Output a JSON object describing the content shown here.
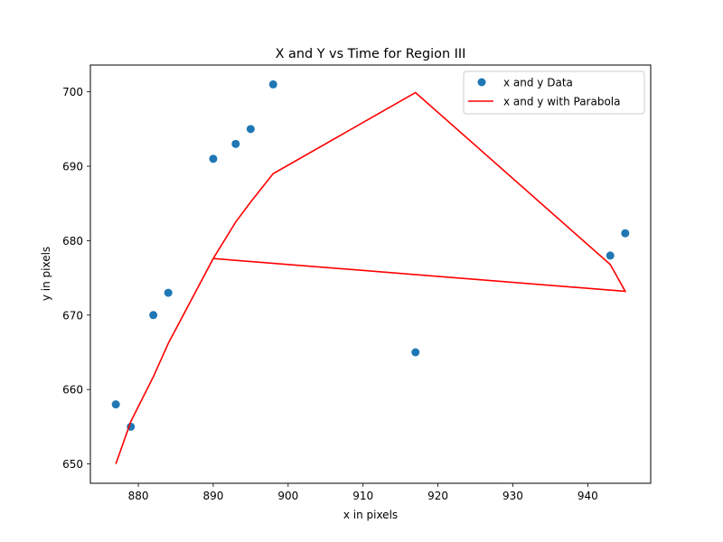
{
  "chart_data": {
    "type": "scatter",
    "title": "X and Y vs Time for Region III",
    "xlabel": "x in pixels",
    "ylabel": "y in pixels",
    "xlim": [
      873.6,
      948.4
    ],
    "ylim": [
      647.4,
      703.6
    ],
    "xticks": [
      880,
      890,
      900,
      910,
      920,
      930,
      940
    ],
    "yticks": [
      650,
      660,
      670,
      680,
      690,
      700
    ],
    "grid": false,
    "legend": "top-right",
    "series": [
      {
        "name": "x and y Data",
        "kind": "scatter",
        "color": "#1f77b4",
        "x": [
          877,
          879,
          882,
          884,
          890,
          893,
          895,
          898,
          917,
          943,
          945
        ],
        "y": [
          658,
          655,
          670,
          673,
          691,
          693,
          695,
          701,
          665,
          678,
          681
        ]
      },
      {
        "name": "x and y with Parabola",
        "kind": "line",
        "color": "#ff0000",
        "x": [
          877,
          879,
          882,
          884,
          890,
          893,
          895,
          898,
          917,
          943,
          945,
          890,
          893,
          895,
          898
        ],
        "y": [
          650.0,
          655.7,
          661.7,
          666.2,
          677.6,
          682.5,
          685.2,
          689.0,
          699.9,
          676.8,
          673.2,
          677.6,
          682.5,
          685.2,
          689.0
        ]
      }
    ]
  }
}
